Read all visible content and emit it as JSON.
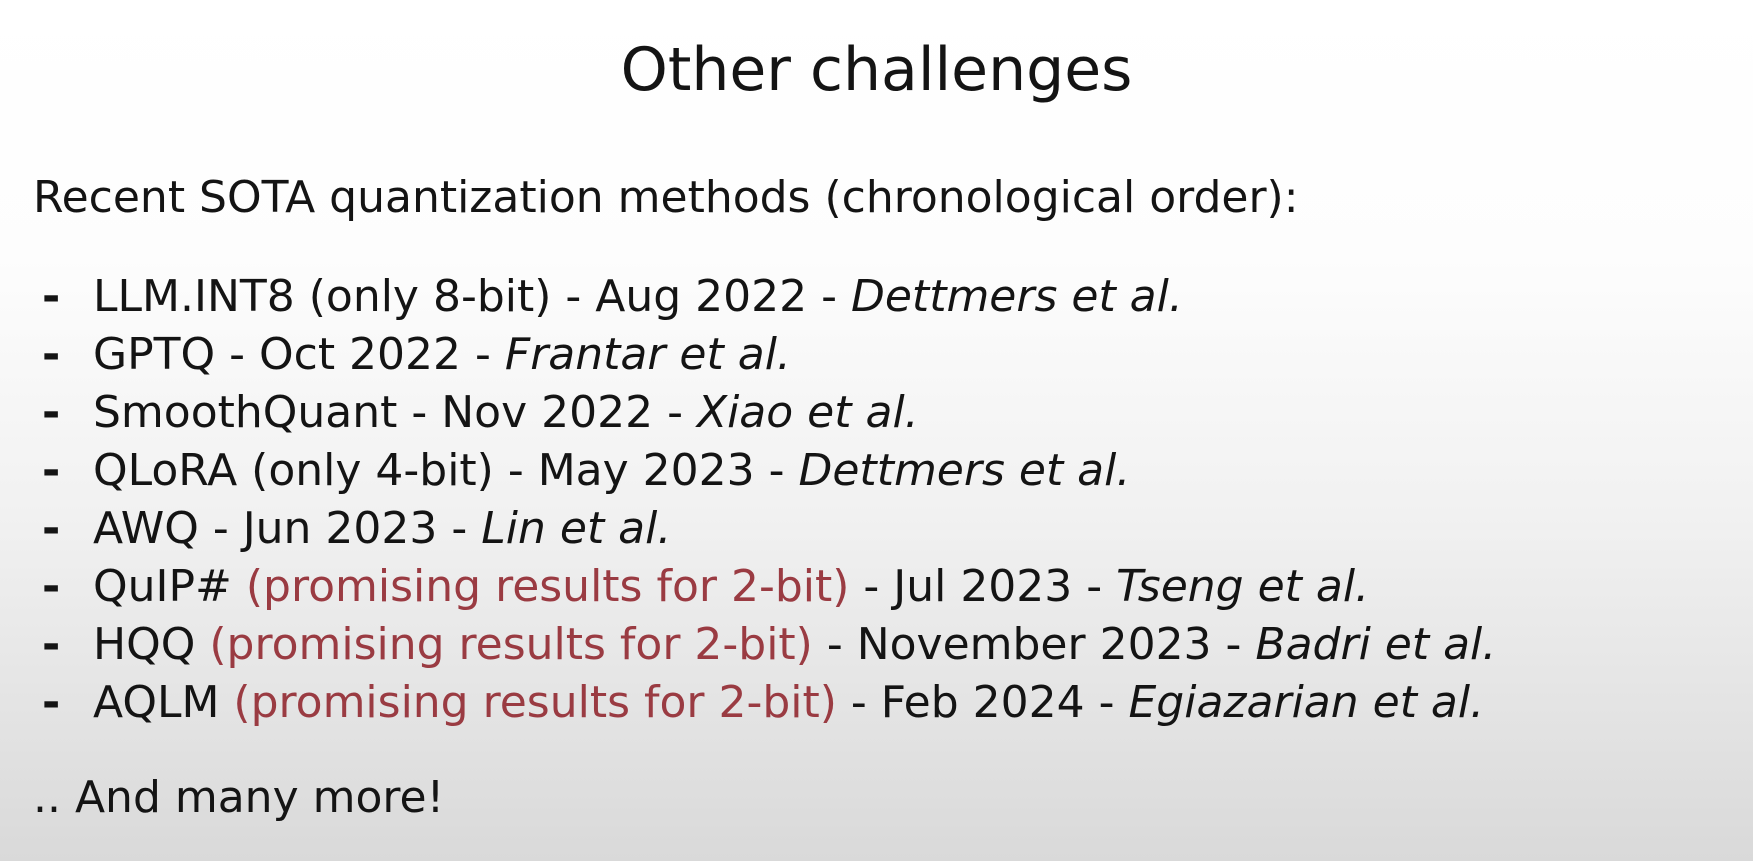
{
  "slide": {
    "title": "Other challenges",
    "intro": "Recent SOTA quantization methods (chronological order):",
    "outro": ".. And many more!"
  },
  "colors": {
    "highlight": "#9a3b42",
    "text": "#141414"
  },
  "methods": [
    {
      "bullet": "-",
      "name": "LLM.INT8",
      "note": " (only 8-bit)",
      "highlight": "",
      "date": " - Aug 2022 - ",
      "authors": "Dettmers et al."
    },
    {
      "bullet": "-",
      "name": "GPTQ",
      "note": "",
      "highlight": "",
      "date": " - Oct 2022 - ",
      "authors": "Frantar et al."
    },
    {
      "bullet": "-",
      "name": "SmoothQuant",
      "note": "",
      "highlight": "",
      "date": " - Nov 2022 - ",
      "authors": "Xiao et al."
    },
    {
      "bullet": "-",
      "name": "QLoRA",
      "note": " (only 4-bit)",
      "highlight": "",
      "date": " - May 2023 - ",
      "authors": "Dettmers et al."
    },
    {
      "bullet": "-",
      "name": "AWQ",
      "note": "",
      "highlight": "",
      "date": " - Jun 2023 - ",
      "authors": "Lin et al."
    },
    {
      "bullet": "-",
      "name": "QuIP#",
      "note": "",
      "highlight": " (promising results for 2-bit)",
      "date": " - Jul 2023 - ",
      "authors": "Tseng et al."
    },
    {
      "bullet": "-",
      "name": "HQQ",
      "note": "",
      "highlight": " (promising results for 2-bit)",
      "date": " - November 2023 - ",
      "authors": "Badri et al."
    },
    {
      "bullet": "-",
      "name": "AQLM",
      "note": "",
      "highlight": " (promising results for 2-bit)",
      "date": " - Feb 2024 - ",
      "authors": "Egiazarian et al."
    }
  ]
}
